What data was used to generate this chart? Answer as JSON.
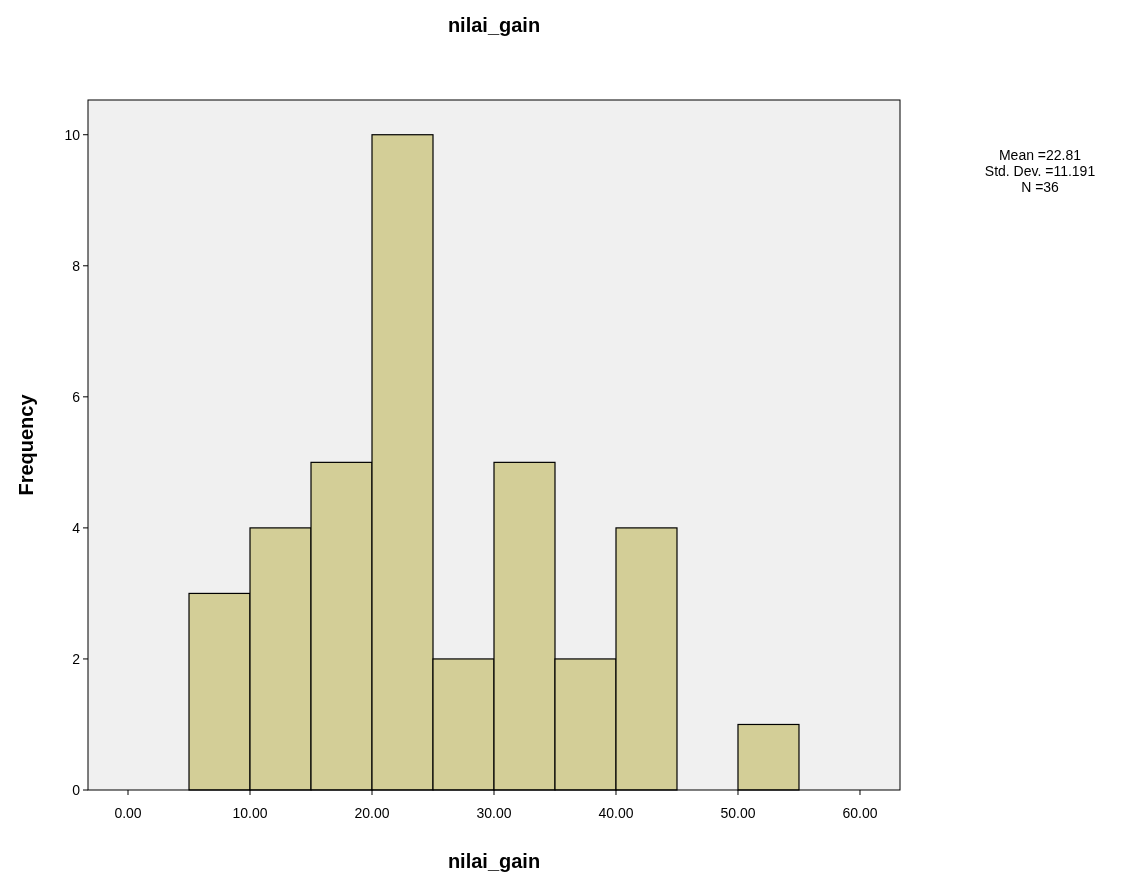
{
  "chart_data": {
    "type": "histogram",
    "title": "nilai_gain",
    "xlabel": "nilai_gain",
    "ylabel": "Frequency",
    "bins": [
      5,
      10,
      15,
      20,
      25,
      30,
      35,
      40,
      45,
      50,
      55
    ],
    "values": [
      3,
      4,
      5,
      10,
      2,
      5,
      2,
      4,
      0,
      1
    ],
    "color": "#d3ce97",
    "xlim": [
      -3.28,
      63.28
    ],
    "xticks": [
      {
        "value": 0,
        "label": "0.00"
      },
      {
        "value": 10,
        "label": "10.00"
      },
      {
        "value": 20,
        "label": "20.00"
      },
      {
        "value": 30,
        "label": "30.00"
      },
      {
        "value": 40,
        "label": "40.00"
      },
      {
        "value": 50,
        "label": "50.00"
      },
      {
        "value": 60,
        "label": "60.00"
      }
    ],
    "ylim": [
      0,
      10.53
    ],
    "yticks": [
      0,
      2,
      4,
      6,
      8,
      10
    ],
    "grid": false,
    "annotations": [
      "Mean =22.81",
      "Std. Dev. =11.191",
      "N =36"
    ]
  }
}
